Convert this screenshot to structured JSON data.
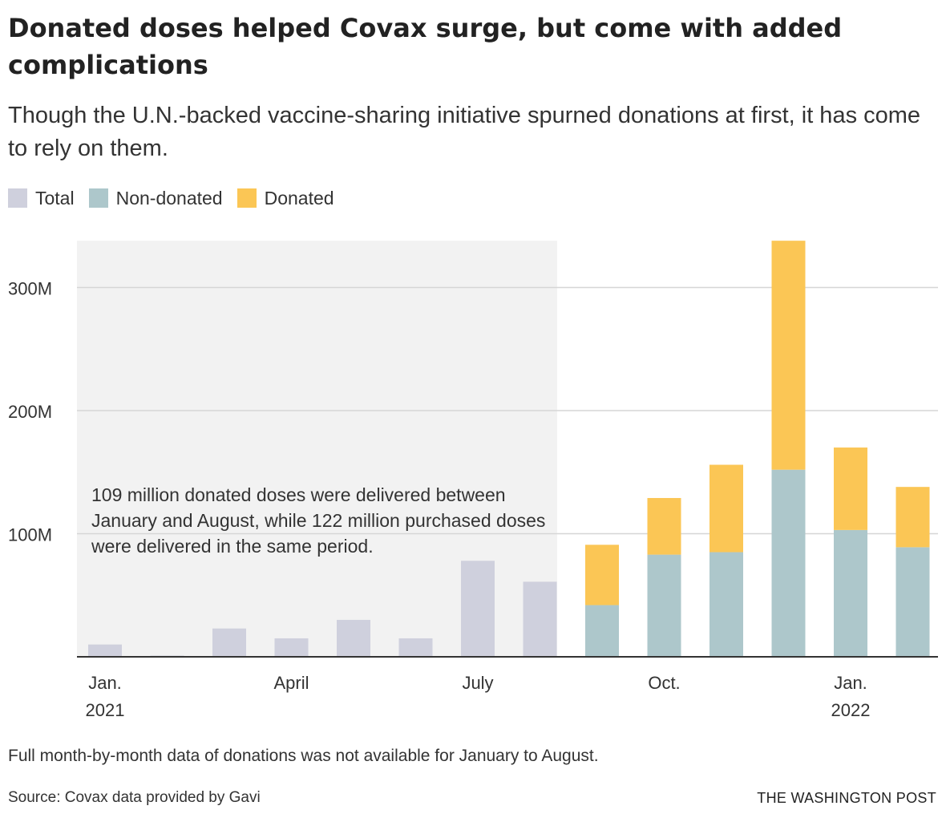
{
  "header": {
    "title": "Donated doses helped Covax surge, but come with added complications",
    "subtitle": "Though the U.N.-backed vaccine-sharing initiative spurned donations at first, it has come to rely on them."
  },
  "legend": [
    {
      "label": "Total",
      "color": "#cfd0dd"
    },
    {
      "label": "Non-donated",
      "color": "#adc7cb"
    },
    {
      "label": "Donated",
      "color": "#fbc655"
    }
  ],
  "annotation": "109 million donated doses were delivered between January and August, while 122 million purchased doses were delivered in the same period.",
  "footer": {
    "note": "Full month-by-month data of donations was not available for January to August.",
    "source": "Source: Covax data provided by Gavi",
    "credit": "THE WASHINGTON POST"
  },
  "chart_data": {
    "type": "bar",
    "stacked": true,
    "categories": [
      "Jan. 2021",
      "Feb. 2021",
      "Mar. 2021",
      "Apr. 2021",
      "May 2021",
      "Jun. 2021",
      "Jul. 2021",
      "Aug. 2021",
      "Sep. 2021",
      "Oct. 2021",
      "Nov. 2021",
      "Dec. 2021",
      "Jan. 2022",
      "Feb. 2022"
    ],
    "series": [
      {
        "name": "Total",
        "color": "#cfd0dd",
        "values": [
          10,
          1,
          23,
          15,
          30,
          15,
          78,
          61,
          null,
          null,
          null,
          null,
          null,
          null
        ]
      },
      {
        "name": "Non-donated",
        "color": "#adc7cb",
        "values": [
          null,
          null,
          null,
          null,
          null,
          null,
          null,
          null,
          42,
          83,
          85,
          152,
          103,
          89
        ]
      },
      {
        "name": "Donated",
        "color": "#fbc655",
        "values": [
          null,
          null,
          null,
          null,
          null,
          null,
          null,
          null,
          49,
          46,
          71,
          186,
          67,
          49
        ]
      }
    ],
    "x_tick_labels": [
      {
        "index": 0,
        "line1": "Jan.",
        "line2": "2021"
      },
      {
        "index": 3,
        "line1": "April",
        "line2": ""
      },
      {
        "index": 6,
        "line1": "July",
        "line2": ""
      },
      {
        "index": 9,
        "line1": "Oct.",
        "line2": ""
      },
      {
        "index": 12,
        "line1": "Jan.",
        "line2": "2022"
      }
    ],
    "y_ticks": [
      100,
      200,
      300
    ],
    "y_tick_labels": [
      "100M",
      "200M",
      "300M"
    ],
    "ylim": [
      0,
      338
    ],
    "grid": true,
    "shaded_period": {
      "from_index": 0,
      "to_index": 7
    },
    "xlabel": "",
    "ylabel": ""
  }
}
